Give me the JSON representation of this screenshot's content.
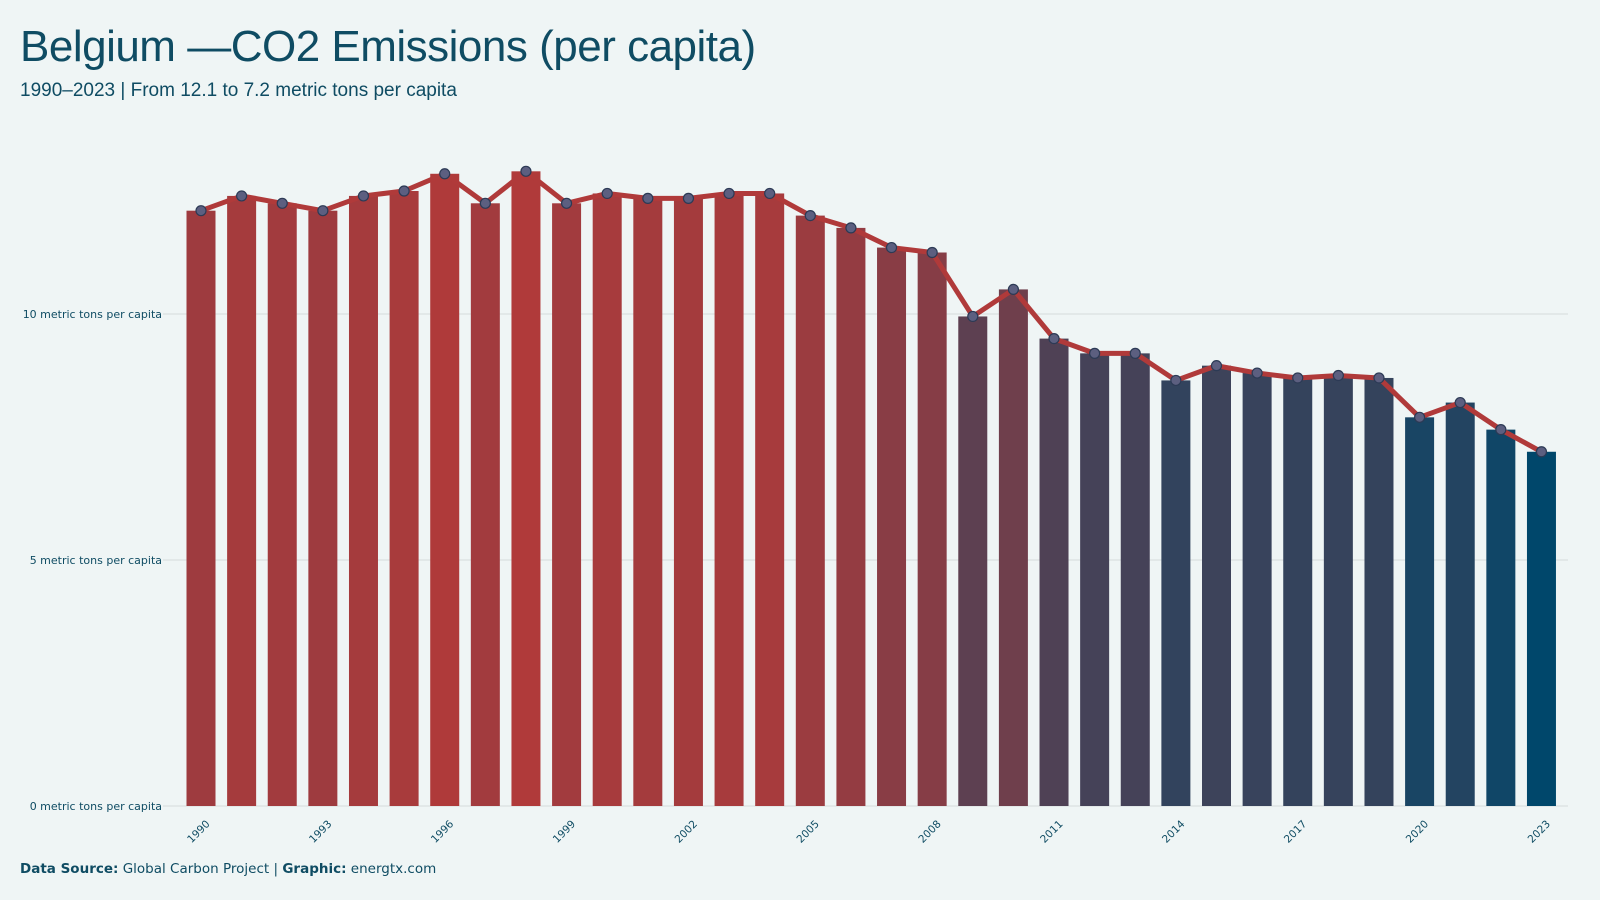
{
  "title": "Belgium —CO2 Emissions (per capita)",
  "subtitle": "1990–2023 | From 12.1 to 7.2 metric tons per capita",
  "footer": {
    "source_label": "Data Source:",
    "source_value": "Global Carbon Project",
    "separator": "|",
    "graphic_label": "Graphic:",
    "graphic_value": "energtx.com"
  },
  "colors": {
    "background": "#eff5f5",
    "title": "#0f4c63",
    "bar_high": "#b03a3a",
    "bar_low": "#00476b",
    "line": "#b03a3a",
    "marker_fill": "#5c5f80",
    "gridline": "#d6dcdc"
  },
  "chart_data": {
    "type": "bar",
    "x": [
      1990,
      1991,
      1992,
      1993,
      1994,
      1995,
      1996,
      1997,
      1998,
      1999,
      2000,
      2001,
      2002,
      2003,
      2004,
      2005,
      2006,
      2007,
      2008,
      2009,
      2010,
      2011,
      2012,
      2013,
      2014,
      2015,
      2016,
      2017,
      2018,
      2019,
      2020,
      2021,
      2022,
      2023
    ],
    "values": [
      12.1,
      12.4,
      12.25,
      12.1,
      12.4,
      12.5,
      12.85,
      12.25,
      12.9,
      12.25,
      12.45,
      12.35,
      12.35,
      12.45,
      12.45,
      12.0,
      11.75,
      11.35,
      11.25,
      9.95,
      10.5,
      9.5,
      9.2,
      9.2,
      8.65,
      8.95,
      8.8,
      8.7,
      8.75,
      8.7,
      7.9,
      8.2,
      7.65,
      7.2
    ],
    "overlay": "line",
    "xtick_labels": [
      "1990",
      "1993",
      "1996",
      "1999",
      "2002",
      "2005",
      "2008",
      "2011",
      "2014",
      "2017",
      "2020",
      "2023"
    ],
    "ytick_values": [
      0,
      5,
      10
    ],
    "ytick_labels": [
      "0 metric tons per capita",
      "5 metric tons per capita",
      "10 metric tons per capita"
    ],
    "ylim": [
      0,
      14
    ],
    "grid": "horizontal",
    "xlabel": "",
    "ylabel": ""
  }
}
